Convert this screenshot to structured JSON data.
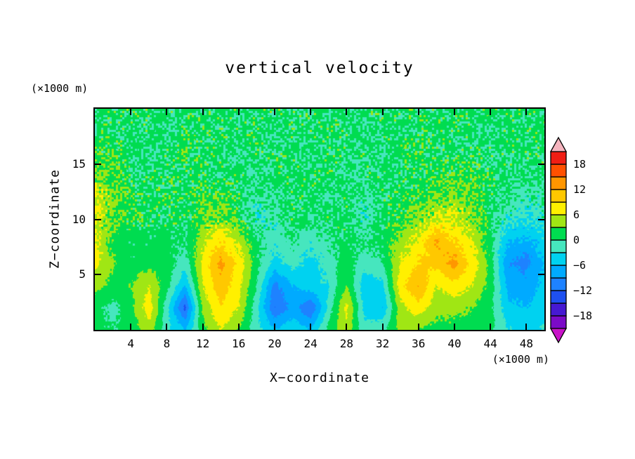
{
  "title": "vertical velocity",
  "axes": {
    "x": {
      "label": "X−coordinate",
      "unit": "(×1000 m)",
      "ticks": [
        4,
        8,
        12,
        16,
        20,
        24,
        28,
        32,
        36,
        40,
        44,
        48
      ],
      "range": [
        0,
        50
      ]
    },
    "z": {
      "label": "Z−coordinate",
      "unit": "(×1000 m)",
      "ticks": [
        5,
        10,
        15
      ],
      "range": [
        0,
        20
      ]
    }
  },
  "colorbar": {
    "labels": [
      "18",
      "12",
      "6",
      "0",
      "−6",
      "−12",
      "−18"
    ],
    "band_colors": [
      "#7B0AC8",
      "#4619D2",
      "#1E50F0",
      "#1E82FF",
      "#00AAFF",
      "#00D2F0",
      "#46E6BE",
      "#00DC50",
      "#A0E614",
      "#FFF000",
      "#FFC800",
      "#FF9600",
      "#FF5000",
      "#F01E14"
    ],
    "under_color": "#C814C8",
    "over_color": "#F5B4BE",
    "outline_color": "#000000"
  },
  "chart_data": {
    "type": "heatmap",
    "title": "vertical velocity",
    "xlabel": "X−coordinate (×1000 m)",
    "ylabel": "Z−coordinate (×1000 m)",
    "contour_interval": 3,
    "value_range": [
      -21,
      21
    ],
    "x": [
      0,
      2,
      4,
      6,
      8,
      10,
      12,
      14,
      16,
      18,
      20,
      22,
      24,
      26,
      28,
      30,
      32,
      34,
      36,
      38,
      40,
      42,
      44,
      46,
      48,
      50
    ],
    "z": [
      0,
      2,
      4,
      6,
      8,
      10,
      12,
      14,
      16,
      18,
      20
    ],
    "rows_order": "z ascending (bottom row first)",
    "values": [
      [
        1,
        0,
        1,
        5,
        -2,
        -6,
        2,
        6,
        3,
        -2,
        -6,
        -4,
        -6,
        1,
        5,
        -2,
        -1,
        4,
        3,
        2,
        2,
        2,
        1,
        -3,
        -4,
        -3
      ],
      [
        1,
        -1,
        2,
        8,
        -2,
        -13,
        4,
        9,
        6,
        -2,
        -12,
        -8,
        -12,
        -2,
        7,
        -4,
        -6,
        5,
        8,
        4,
        4,
        3,
        1,
        -5,
        -6,
        -4
      ],
      [
        4,
        2,
        3,
        6,
        1,
        -6,
        6,
        11,
        7,
        0,
        -10,
        -6,
        -4,
        -3,
        3,
        -5,
        -4,
        8,
        12,
        6,
        8,
        6,
        2,
        -7,
        -8,
        -5
      ],
      [
        7,
        3,
        1,
        2,
        2,
        -2,
        7,
        13,
        8,
        1,
        -4,
        -2,
        -4,
        -2,
        2,
        -2,
        0,
        6,
        9,
        10,
        13,
        8,
        2,
        -9,
        -10,
        -6
      ],
      [
        7,
        2,
        1,
        1,
        1,
        0,
        5,
        9,
        5,
        1,
        -2,
        0,
        -2,
        0,
        1,
        0,
        1,
        4,
        7,
        12,
        9,
        6,
        1,
        -6,
        -7,
        -4
      ],
      [
        6,
        3,
        2,
        1,
        1,
        1,
        3,
        4,
        2,
        -2,
        -1,
        1,
        0,
        1,
        1,
        -2,
        1,
        2,
        4,
        6,
        6,
        4,
        1,
        -2,
        -3,
        -2
      ],
      [
        6,
        4,
        2,
        1,
        2,
        1,
        2,
        2,
        1,
        -1,
        0,
        1,
        1,
        0,
        1,
        -1,
        1,
        1,
        2,
        3,
        4,
        3,
        1,
        0,
        -1,
        -1
      ],
      [
        4,
        3,
        1,
        1,
        1,
        1,
        1,
        1,
        1,
        0,
        1,
        1,
        1,
        1,
        0,
        1,
        1,
        1,
        1,
        2,
        2,
        2,
        1,
        1,
        0,
        1
      ],
      [
        2,
        2,
        1,
        0,
        1,
        2,
        1,
        1,
        0,
        1,
        1,
        1,
        0,
        1,
        1,
        1,
        0,
        1,
        2,
        1,
        1,
        1,
        1,
        1,
        1,
        1
      ],
      [
        1,
        1,
        1,
        1,
        0,
        1,
        1,
        1,
        1,
        1,
        0,
        1,
        1,
        1,
        1,
        0,
        1,
        1,
        1,
        1,
        1,
        1,
        0,
        1,
        1,
        1
      ],
      [
        1,
        1,
        1,
        1,
        1,
        1,
        1,
        1,
        1,
        1,
        1,
        1,
        1,
        1,
        1,
        1,
        1,
        1,
        1,
        1,
        1,
        1,
        1,
        1,
        1,
        1
      ]
    ]
  }
}
